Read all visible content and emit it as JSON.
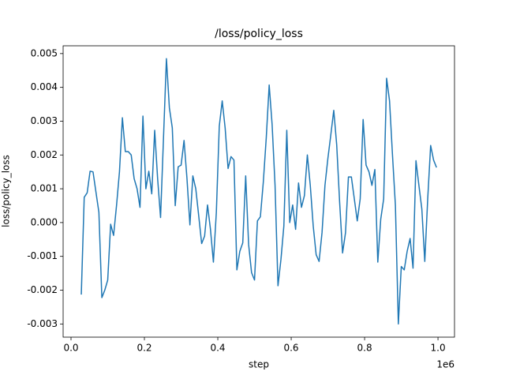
{
  "chart_data": {
    "type": "line",
    "title": "/loss/policy_loss",
    "x_label": "step",
    "y_label": "loss/policy_loss",
    "x_offset_label": "1e6",
    "x": [
      28000,
      36000,
      44000,
      52000,
      60000,
      68000,
      76000,
      84000,
      92000,
      100000,
      108000,
      116000,
      124000,
      132000,
      140000,
      148000,
      156000,
      164000,
      172000,
      180000,
      188000,
      196000,
      204000,
      212000,
      220000,
      228000,
      236000,
      244000,
      252000,
      260000,
      268000,
      276000,
      284000,
      292000,
      300000,
      308000,
      316000,
      324000,
      332000,
      340000,
      348000,
      356000,
      364000,
      372000,
      380000,
      388000,
      396000,
      404000,
      412000,
      420000,
      428000,
      436000,
      444000,
      452000,
      460000,
      468000,
      476000,
      484000,
      492000,
      500000,
      508000,
      516000,
      524000,
      532000,
      540000,
      548000,
      556000,
      564000,
      572000,
      580000,
      588000,
      596000,
      604000,
      612000,
      620000,
      628000,
      636000,
      644000,
      652000,
      660000,
      668000,
      676000,
      684000,
      692000,
      700000,
      708000,
      716000,
      724000,
      732000,
      740000,
      748000,
      756000,
      764000,
      772000,
      780000,
      788000,
      796000,
      804000,
      812000,
      820000,
      828000,
      836000,
      844000,
      852000,
      860000,
      868000,
      876000,
      884000,
      892000,
      900000,
      908000,
      916000,
      924000,
      932000,
      940000,
      948000,
      956000,
      964000,
      972000,
      980000,
      988000,
      996000
    ],
    "series": [
      {
        "name": "policy_loss",
        "color": "#1f77b4",
        "values": [
          -0.00213,
          0.00075,
          0.00088,
          0.00152,
          0.0015,
          0.0009,
          0.0003,
          -0.00222,
          -0.002,
          -0.0017,
          -5e-05,
          -0.00038,
          0.0005,
          0.0015,
          0.0031,
          0.0021,
          0.0021,
          0.002,
          0.0013,
          0.001,
          0.00045,
          0.00315,
          0.001,
          0.00152,
          0.00085,
          0.00273,
          0.0013,
          0.00015,
          0.0025,
          0.00485,
          0.0034,
          0.0028,
          0.0005,
          0.00165,
          0.0017,
          0.00243,
          0.0013,
          -7e-05,
          0.00138,
          0.001,
          0.0002,
          -0.00062,
          -0.0004,
          0.00052,
          -0.0002,
          -0.00117,
          0.0003,
          0.00285,
          0.0036,
          0.0028,
          0.0016,
          0.00195,
          0.00185,
          -0.0014,
          -0.00085,
          -0.0006,
          0.00138,
          -0.00065,
          -0.00148,
          -0.0017,
          5e-05,
          0.00017,
          0.0012,
          0.0025,
          0.00407,
          0.0029,
          0.0011,
          -0.00187,
          -0.0011,
          -0.0001,
          0.00273,
          0.0,
          0.00052,
          -0.0002,
          0.00117,
          0.00045,
          0.0008,
          0.002,
          0.0011,
          -0.0001,
          -0.00095,
          -0.00115,
          -0.0003,
          0.0011,
          0.0019,
          0.0026,
          0.00332,
          0.0023,
          0.0006,
          -0.0009,
          -0.0003,
          0.00135,
          0.00135,
          0.0007,
          5e-05,
          0.0007,
          0.00305,
          0.0017,
          0.0015,
          0.0011,
          0.00157,
          -0.00117,
          0.0001,
          0.0007,
          0.00427,
          0.0036,
          0.002,
          0.0005,
          -0.003,
          -0.0013,
          -0.0014,
          -0.00085,
          -0.00047,
          -0.00135,
          0.00183,
          0.0011,
          0.0004,
          -0.00115,
          0.0007,
          0.00228,
          0.00185,
          0.00163
        ]
      }
    ],
    "xlim": [
      -21500,
      1045000
    ],
    "xticks": [
      {
        "value": 0,
        "label": "0.0"
      },
      {
        "value": 200000,
        "label": "0.2"
      },
      {
        "value": 400000,
        "label": "0.4"
      },
      {
        "value": 600000,
        "label": "0.6"
      },
      {
        "value": 800000,
        "label": "0.8"
      },
      {
        "value": 1000000,
        "label": "1.0"
      }
    ],
    "ylim": [
      -0.00339,
      0.00523
    ],
    "yticks": [
      -0.003,
      -0.002,
      -0.001,
      {
        "value": 0,
        "label": "0.000"
      },
      0.001,
      0.002,
      0.003,
      0.004,
      0.005
    ],
    "grid": false
  }
}
